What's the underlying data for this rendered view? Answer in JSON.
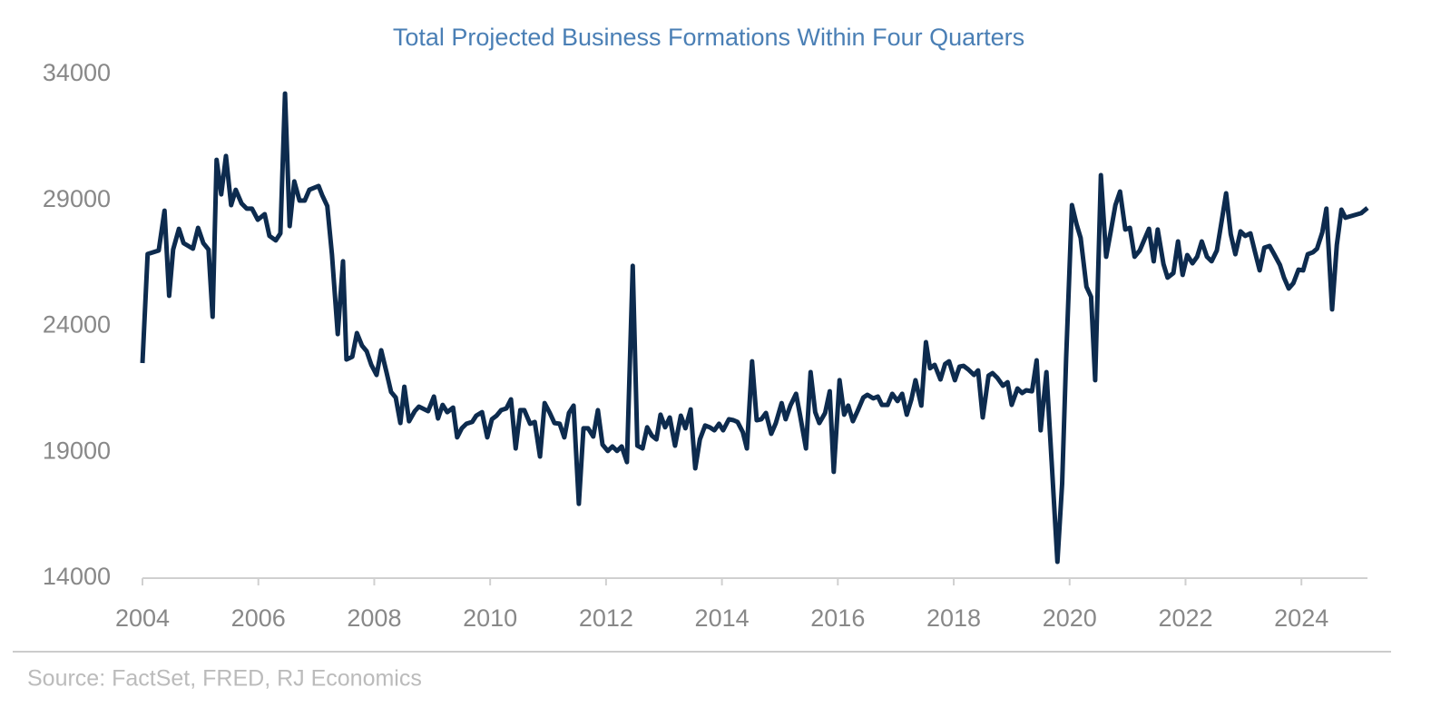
{
  "chart_data": {
    "type": "line",
    "title": "Total Projected Business Formations Within Four Quarters",
    "source": "Source: FactSet, FRED, RJ Economics",
    "color": "#0d2b4e",
    "xlim": [
      2004,
      2025.14
    ],
    "xticks": [
      2004,
      2006,
      2008,
      2010,
      2012,
      2014,
      2016,
      2018,
      2020,
      2022,
      2024
    ],
    "ylim": [
      14000,
      34000
    ],
    "yticks": [
      14000,
      19000,
      24000,
      29000,
      34000
    ],
    "grid": false,
    "x": [
      2004.0,
      2004.09,
      2004.28,
      2004.38,
      2004.46,
      2004.53,
      2004.63,
      2004.71,
      2004.87,
      2004.96,
      2005.05,
      2005.14,
      2005.21,
      2005.28,
      2005.36,
      2005.44,
      2005.53,
      2005.61,
      2005.71,
      2005.8,
      2005.89,
      2005.99,
      2006.11,
      2006.19,
      2006.3,
      2006.38,
      2006.46,
      2006.54,
      2006.62,
      2006.71,
      2006.8,
      2006.88,
      2007.04,
      2007.1,
      2007.19,
      2007.27,
      2007.37,
      2007.46,
      2007.52,
      2007.62,
      2007.7,
      2007.79,
      2007.87,
      2007.95,
      2008.04,
      2008.12,
      2008.21,
      2008.29,
      2008.37,
      2008.45,
      2008.52,
      2008.6,
      2008.7,
      2008.77,
      2008.93,
      2009.03,
      2009.1,
      2009.18,
      2009.26,
      2009.36,
      2009.43,
      2009.51,
      2009.59,
      2009.69,
      2009.76,
      2009.86,
      2009.95,
      2010.03,
      2010.11,
      2010.19,
      2010.28,
      2010.36,
      2010.44,
      2010.52,
      2010.59,
      2010.69,
      2010.77,
      2010.86,
      2010.94,
      2011.03,
      2011.11,
      2011.2,
      2011.28,
      2011.36,
      2011.44,
      2011.53,
      2011.61,
      2011.69,
      2011.78,
      2011.86,
      2011.94,
      2012.03,
      2012.11,
      2012.19,
      2012.27,
      2012.36,
      2012.46,
      2012.54,
      2012.63,
      2012.71,
      2012.79,
      2012.87,
      2012.94,
      2013.02,
      2013.1,
      2013.19,
      2013.29,
      2013.37,
      2013.46,
      2013.54,
      2013.62,
      2013.71,
      2013.79,
      2013.87,
      2013.95,
      2014.02,
      2014.12,
      2014.2,
      2014.27,
      2014.36,
      2014.43,
      2014.52,
      2014.6,
      2014.68,
      2014.76,
      2014.85,
      2014.93,
      2015.03,
      2015.1,
      2015.18,
      2015.28,
      2015.35,
      2015.45,
      2015.53,
      2015.61,
      2015.68,
      2015.78,
      2015.86,
      2015.93,
      2016.03,
      2016.11,
      2016.18,
      2016.26,
      2016.34,
      2016.44,
      2016.51,
      2016.61,
      2016.69,
      2016.76,
      2016.86,
      2016.94,
      2017.03,
      2017.11,
      2017.19,
      2017.27,
      2017.34,
      2017.44,
      2017.52,
      2017.59,
      2017.67,
      2017.77,
      2017.85,
      2017.92,
      2018.02,
      2018.1,
      2018.17,
      2018.25,
      2018.35,
      2018.42,
      2018.5,
      2018.6,
      2018.67,
      2018.75,
      2018.85,
      2018.93,
      2019.0,
      2019.1,
      2019.18,
      2019.25,
      2019.35,
      2019.43,
      2019.5,
      2019.6,
      2019.69,
      2019.79,
      2019.87,
      2019.94,
      2020.04,
      2020.12,
      2020.19,
      2020.29,
      2020.37,
      2020.44,
      2020.54,
      2020.63,
      2020.71,
      2020.79,
      2020.87,
      2020.96,
      2021.04,
      2021.12,
      2021.21,
      2021.29,
      2021.37,
      2021.45,
      2021.52,
      2021.62,
      2021.69,
      2021.79,
      2021.87,
      2021.95,
      2022.03,
      2022.12,
      2022.2,
      2022.28,
      2022.37,
      2022.45,
      2022.54,
      2022.62,
      2022.7,
      2022.78,
      2022.86,
      2022.95,
      2023.03,
      2023.12,
      2023.2,
      2023.28,
      2023.36,
      2023.45,
      2023.53,
      2023.63,
      2023.7,
      2023.78,
      2023.86,
      2023.95,
      2024.03,
      2024.11,
      2024.2,
      2024.27,
      2024.36,
      2024.43,
      2024.53,
      2024.61,
      2024.69,
      2024.76,
      2025.03,
      2025.14
    ],
    "values": [
      22540,
      26870,
      27010,
      28590,
      25210,
      27050,
      27870,
      27300,
      27080,
      27910,
      27300,
      27050,
      24380,
      30610,
      29240,
      30760,
      28810,
      29420,
      28880,
      28670,
      28670,
      28230,
      28450,
      27590,
      27410,
      27690,
      33240,
      27980,
      29750,
      28990,
      28990,
      29420,
      29570,
      29210,
      28770,
      26860,
      23690,
      26580,
      22680,
      22790,
      23730,
      23230,
      23010,
      22470,
      22070,
      23050,
      22180,
      21390,
      21170,
      20160,
      21600,
      20230,
      20630,
      20810,
      20630,
      21210,
      20340,
      20880,
      20590,
      20770,
      19590,
      19950,
      20130,
      20200,
      20450,
      20590,
      19590,
      20310,
      20450,
      20670,
      20740,
      21100,
      19150,
      20670,
      20670,
      20130,
      20200,
      18830,
      20950,
      20560,
      20160,
      20130,
      19590,
      20560,
      20850,
      16950,
      19950,
      19950,
      19620,
      20670,
      19300,
      19050,
      19230,
      19050,
      19230,
      18610,
      26400,
      19260,
      19150,
      19990,
      19660,
      19510,
      20490,
      19990,
      20380,
      19260,
      20450,
      19950,
      20700,
      18360,
      19510,
      20060,
      19990,
      19870,
      20130,
      19870,
      20310,
      20270,
      20200,
      19800,
      19150,
      22610,
      20270,
      20310,
      20560,
      19730,
      20160,
      20950,
      20310,
      20850,
      21320,
      20450,
      19150,
      22180,
      20590,
      20160,
      20560,
      21420,
      18220,
      21860,
      20490,
      20850,
      20230,
      20630,
      21170,
      21280,
      21140,
      21210,
      20880,
      20880,
      21320,
      21030,
      21320,
      20490,
      21100,
      21860,
      20850,
      23370,
      22330,
      22470,
      21890,
      22500,
      22610,
      21860,
      22400,
      22430,
      22290,
      22070,
      22250,
      20380,
      22040,
      22140,
      21960,
      21640,
      21780,
      20880,
      21530,
      21350,
      21460,
      21420,
      22650,
      19870,
      22180,
      18580,
      14650,
      17750,
      22720,
      28810,
      28050,
      27510,
      25570,
      25170,
      21860,
      30000,
      26760,
      27770,
      28810,
      29350,
      27840,
      27910,
      26760,
      27010,
      27440,
      27870,
      26580,
      27840,
      26470,
      25930,
      26110,
      27370,
      26040,
      26830,
      26500,
      26760,
      27370,
      26760,
      26580,
      27010,
      28130,
      29280,
      27660,
      26860,
      27770,
      27590,
      27690,
      26940,
      26220,
      27120,
      27190,
      26860,
      26430,
      25930,
      25500,
      25710,
      26250,
      26220,
      26860,
      26940,
      27080,
      27730,
      28670,
      24670,
      27230,
      28630,
      28310,
      28490,
      28700
    ]
  }
}
